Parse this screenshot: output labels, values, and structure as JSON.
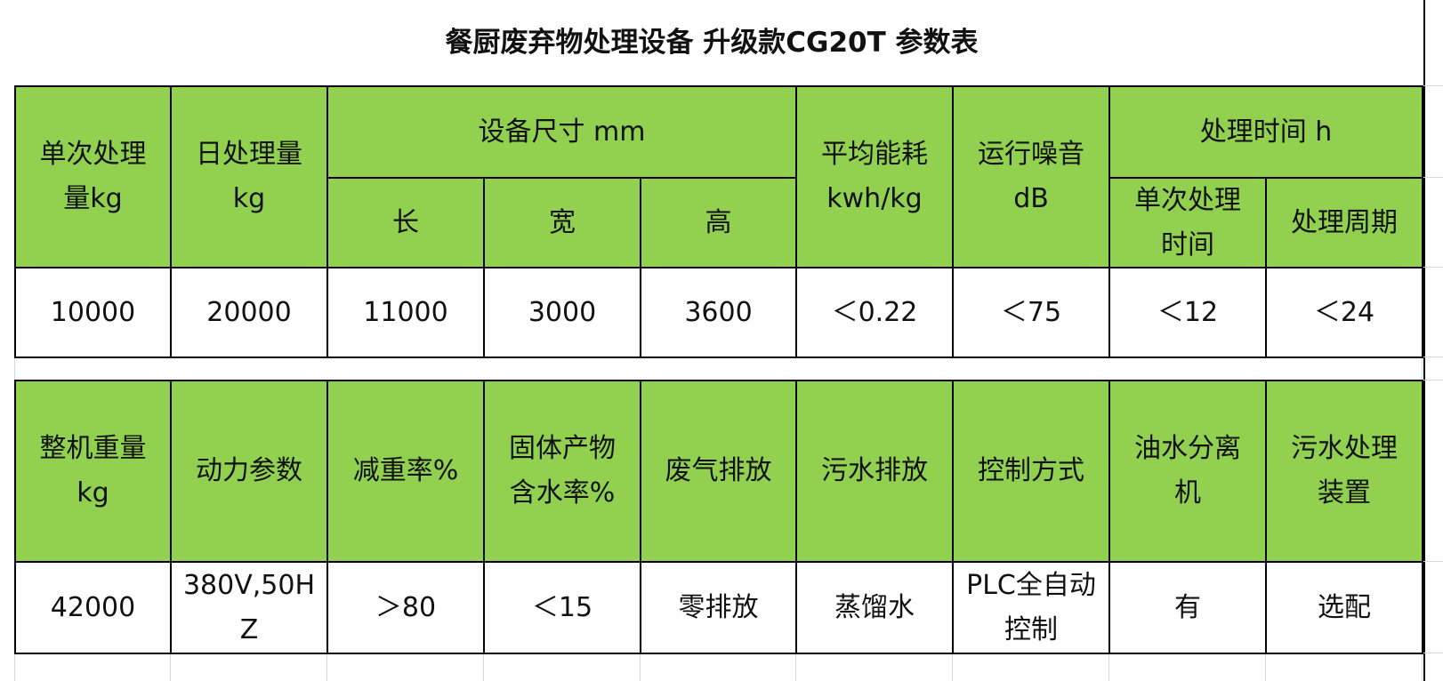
{
  "title": "餐厨废弃物处理设备 升级款CG20T 参数表",
  "table1": {
    "header": [
      "单次处理\n量kg",
      "日处理量\nkg",
      "设备尺寸 mm",
      "平均能耗\nkwh/kg",
      "运行噪音\ndB",
      "处理时间 h"
    ],
    "subheader": [
      "长",
      "宽",
      "高",
      "单次处理\n时间",
      "处理周期"
    ],
    "values": [
      "10000",
      "20000",
      "11000",
      "3000",
      "3600",
      "＜0.22",
      "＜75",
      "＜12",
      "＜24"
    ]
  },
  "table2": {
    "header": [
      "整机重量\nkg",
      "动力参数",
      "减重率%",
      "固体产物\n含水率%",
      "废气排放",
      "污水排放",
      "控制方式",
      "油水分离\n机",
      "污水处理\n装置"
    ],
    "values": [
      "42000",
      "380V,50H\nZ",
      "＞80",
      "＜15",
      "零排放",
      "蒸馏水",
      "PLC全自动\n控制",
      "有",
      "选配"
    ]
  }
}
